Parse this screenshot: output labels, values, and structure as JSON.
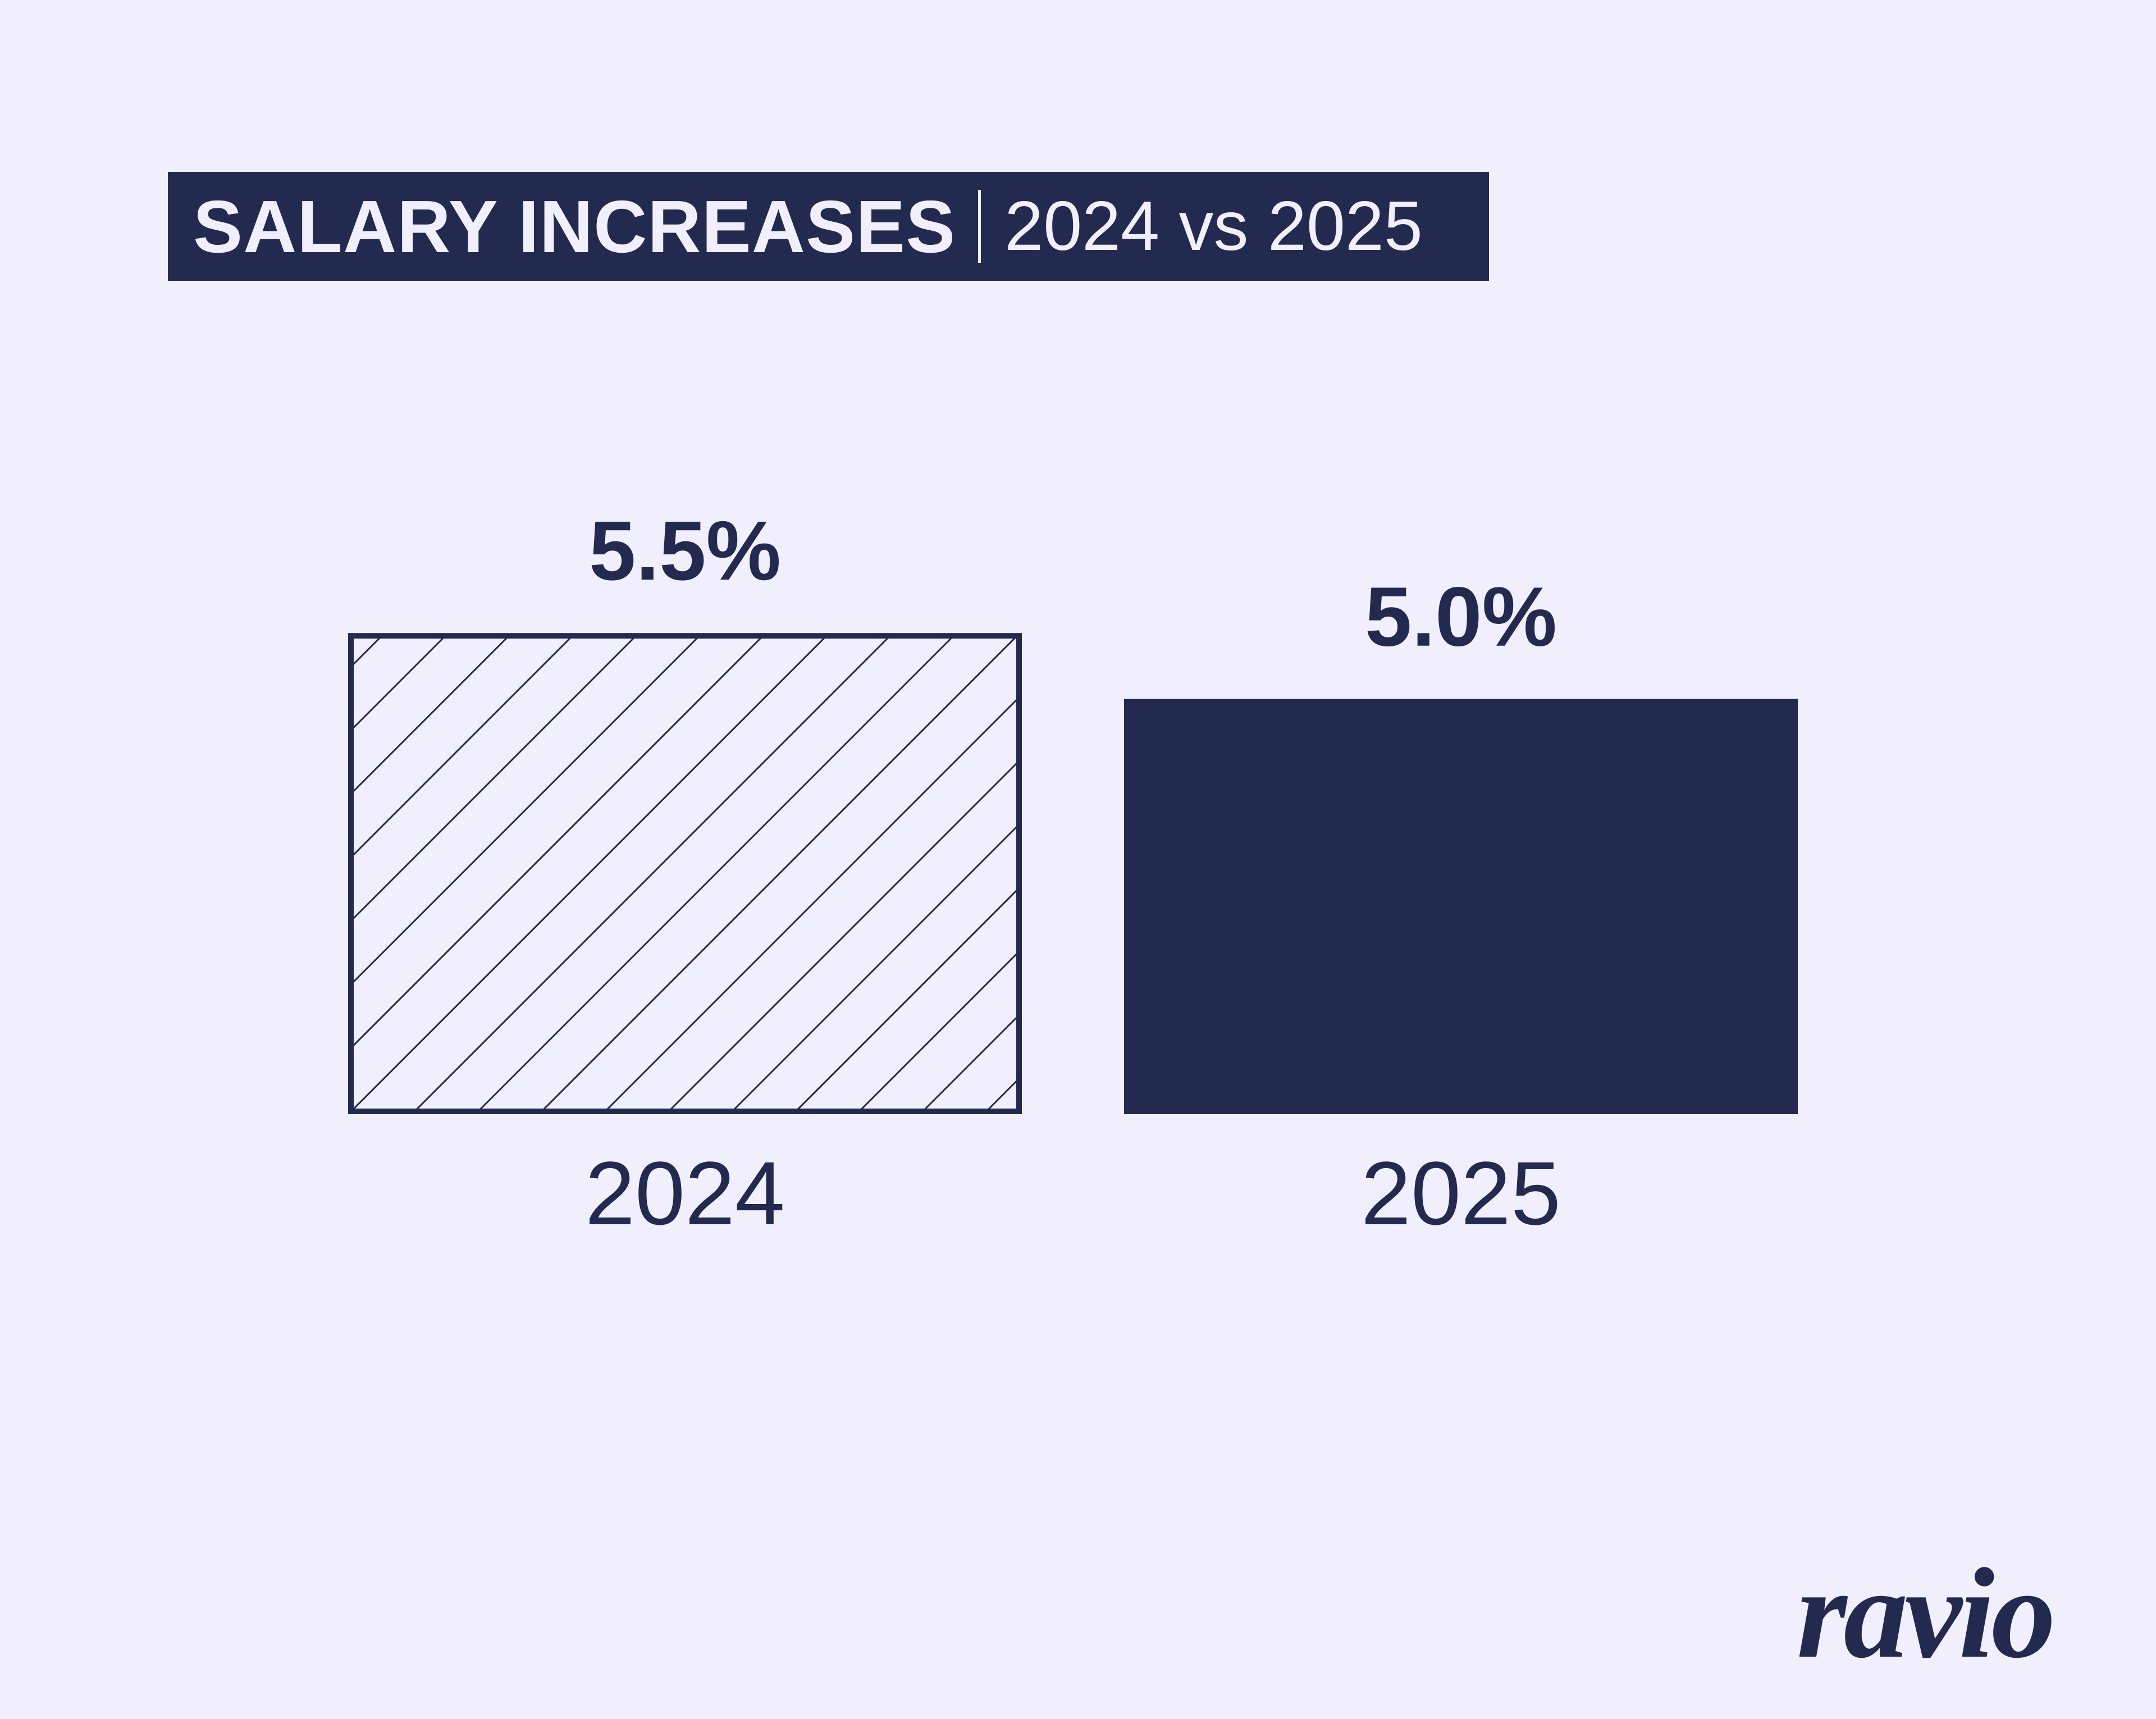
{
  "header": {
    "title": "SALARY INCREASES",
    "subtitle": "2024 vs 2025"
  },
  "chart_data": {
    "type": "bar",
    "categories": [
      "2024",
      "2025"
    ],
    "values": [
      5.5,
      5.0
    ],
    "value_labels": [
      "5.5%",
      "5.0%"
    ],
    "unit": "%",
    "title": "SALARY INCREASES",
    "subtitle": "2024 vs 2025",
    "xlabel": "",
    "ylabel": "",
    "grid": false,
    "bar_styles": [
      "hatched",
      "solid"
    ],
    "colors": {
      "bar": "#232a50",
      "background": "#f1effd"
    }
  },
  "brand": {
    "logo_text": "ravio"
  }
}
